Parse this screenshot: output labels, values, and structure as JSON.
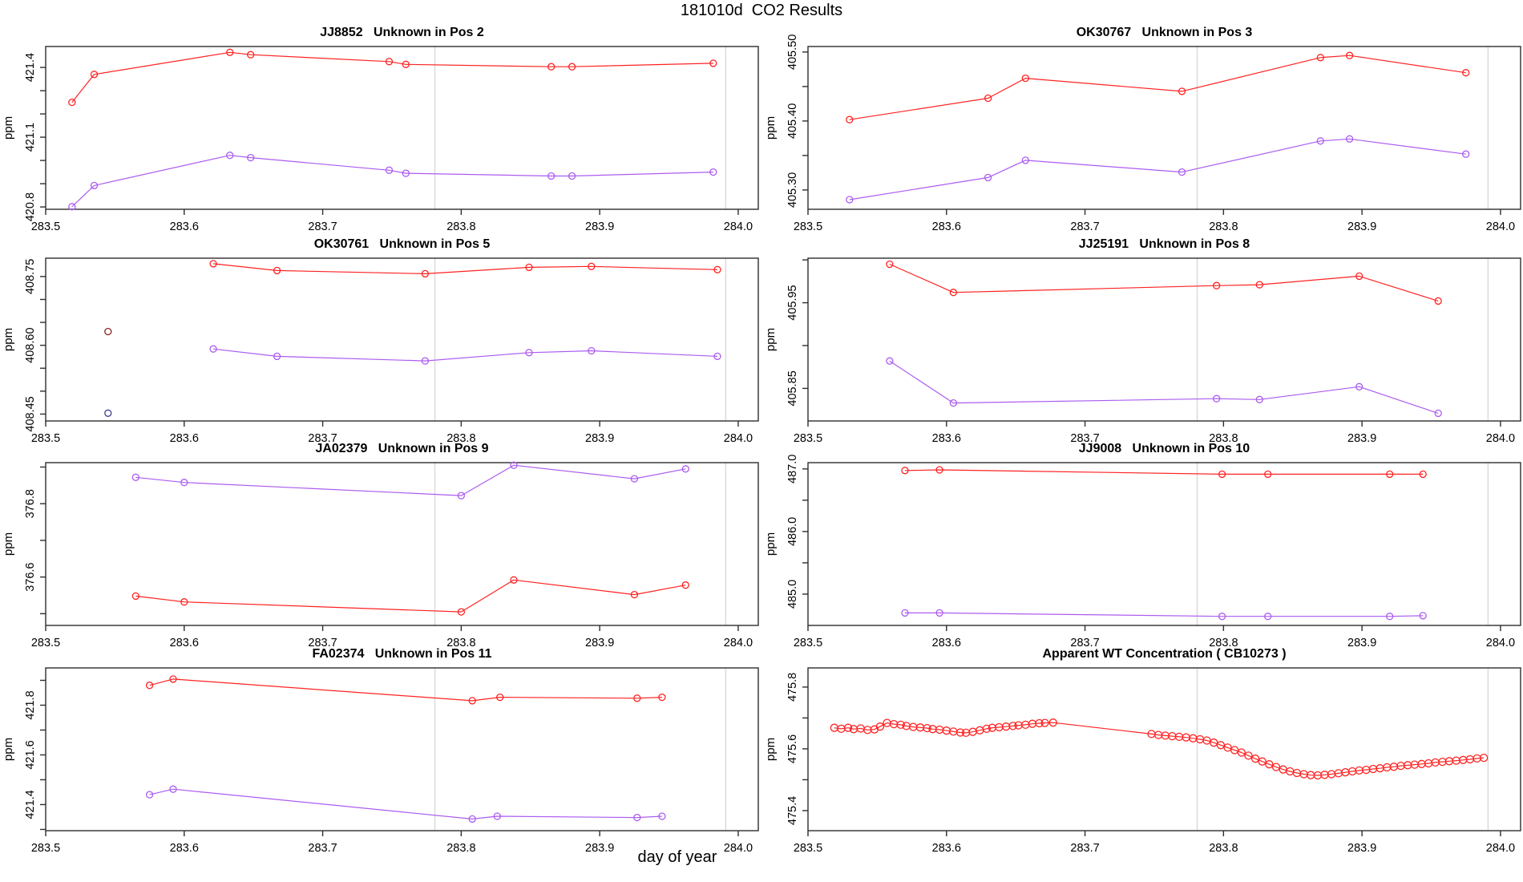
{
  "figure_title": "181010d  CO2 Results",
  "xlabel": "day of year",
  "palette": {
    "red": "#FF2222",
    "purple": "#AC5CF0",
    "dark_red": "#8B2323",
    "dark_purple": "#3F3C8E",
    "gridline": "#D8D8D8",
    "axis": "#2E2E2E"
  },
  "x_axis": {
    "lim": [
      283.5,
      284.0145
    ],
    "ticks": [
      283.5,
      283.6,
      283.7,
      283.8,
      283.9,
      284.0
    ],
    "tick_labels": [
      "283.5",
      "283.6",
      "283.7",
      "283.8",
      "283.9",
      "284.0"
    ],
    "vlines": [
      283.781,
      283.991
    ]
  },
  "chart_data": [
    {
      "type": "line",
      "title": "JJ8852   Unknown in Pos 2",
      "ylabel": "ppm",
      "ylim": [
        420.79,
        421.49
      ],
      "y_ticks": [
        420.8,
        420.9,
        421.0,
        421.1,
        421.2,
        421.3,
        421.4
      ],
      "y_tick_labels": [
        "420.8",
        "",
        "",
        "421.1",
        "",
        "",
        "421.4"
      ],
      "series": [
        {
          "name": "red-series",
          "color": "#FF2222",
          "line": true,
          "marker_r": 4,
          "points": [
            [
              283.519,
              421.25
            ],
            [
              283.535,
              421.37
            ],
            [
              283.633,
              421.465
            ],
            [
              283.648,
              421.455
            ],
            [
              283.748,
              421.425
            ],
            [
              283.76,
              421.413
            ],
            [
              283.865,
              421.403
            ],
            [
              283.88,
              421.403
            ],
            [
              283.982,
              421.418
            ]
          ]
        },
        {
          "name": "purple-series",
          "color": "#AC5CF0",
          "line": true,
          "marker_r": 4,
          "points": [
            [
              283.519,
              420.801
            ],
            [
              283.535,
              420.892
            ],
            [
              283.633,
              421.022
            ],
            [
              283.648,
              421.012
            ],
            [
              283.748,
              420.958
            ],
            [
              283.76,
              420.945
            ],
            [
              283.865,
              420.933
            ],
            [
              283.88,
              420.933
            ],
            [
              283.982,
              420.95
            ]
          ]
        }
      ]
    },
    {
      "type": "line",
      "title": "OK30767   Unknown in Pos 3",
      "ylabel": "ppm",
      "ylim": [
        405.272,
        405.508
      ],
      "y_ticks": [
        405.3,
        405.35,
        405.4,
        405.45,
        405.5
      ],
      "y_tick_labels": [
        "405.30",
        "",
        "405.40",
        "",
        "405.50"
      ],
      "series": [
        {
          "name": "red-series",
          "color": "#FF2222",
          "line": true,
          "marker_r": 4,
          "points": [
            [
              283.53,
              405.402
            ],
            [
              283.63,
              405.433
            ],
            [
              283.657,
              405.462
            ],
            [
              283.77,
              405.443
            ],
            [
              283.87,
              405.492
            ],
            [
              283.891,
              405.495
            ],
            [
              283.975,
              405.47
            ]
          ]
        },
        {
          "name": "purple-series",
          "color": "#AC5CF0",
          "line": true,
          "marker_r": 4,
          "points": [
            [
              283.53,
              405.286
            ],
            [
              283.63,
              405.318
            ],
            [
              283.657,
              405.343
            ],
            [
              283.77,
              405.326
            ],
            [
              283.87,
              405.371
            ],
            [
              283.891,
              405.374
            ],
            [
              283.975,
              405.352
            ]
          ]
        }
      ]
    },
    {
      "type": "line",
      "title": "OK30761   Unknown in Pos 5",
      "ylabel": "ppm",
      "ylim": [
        408.435,
        408.79
      ],
      "y_ticks": [
        408.45,
        408.5,
        408.55,
        408.6,
        408.65,
        408.7,
        408.75
      ],
      "y_tick_labels": [
        "408.45",
        "",
        "",
        "408.60",
        "",
        "",
        "408.75"
      ],
      "series": [
        {
          "name": "red-series",
          "color": "#FF2222",
          "line": true,
          "marker_r": 4,
          "points": [
            [
              283.621,
              408.778
            ],
            [
              283.667,
              408.763
            ],
            [
              283.774,
              408.756
            ],
            [
              283.849,
              408.77
            ],
            [
              283.894,
              408.772
            ],
            [
              283.985,
              408.765
            ]
          ]
        },
        {
          "name": "purple-series",
          "color": "#AC5CF0",
          "line": true,
          "marker_r": 4,
          "points": [
            [
              283.621,
              408.592
            ],
            [
              283.667,
              408.576
            ],
            [
              283.774,
              408.566
            ],
            [
              283.849,
              408.584
            ],
            [
              283.894,
              408.588
            ],
            [
              283.985,
              408.576
            ]
          ]
        },
        {
          "name": "dark-red-point",
          "color": "#8B2323",
          "line": false,
          "marker_r": 4,
          "points": [
            [
              283.545,
              408.63
            ]
          ]
        },
        {
          "name": "dark-purple-point",
          "color": "#3F3C8E",
          "line": false,
          "marker_r": 4,
          "points": [
            [
              283.545,
              408.452
            ]
          ]
        }
      ]
    },
    {
      "type": "line",
      "title": "JJ25191   Unknown in Pos 8",
      "ylabel": "ppm",
      "ylim": [
        405.812,
        406.002
      ],
      "y_ticks": [
        405.85,
        405.9,
        405.95,
        406.0
      ],
      "y_tick_labels": [
        "405.85",
        "",
        "405.95",
        ""
      ],
      "series": [
        {
          "name": "red-series",
          "color": "#FF2222",
          "line": true,
          "marker_r": 4,
          "points": [
            [
              283.559,
              405.995
            ],
            [
              283.605,
              405.962
            ],
            [
              283.795,
              405.97
            ],
            [
              283.826,
              405.971
            ],
            [
              283.898,
              405.981
            ],
            [
              283.955,
              405.952
            ]
          ]
        },
        {
          "name": "purple-series",
          "color": "#AC5CF0",
          "line": true,
          "marker_r": 4,
          "points": [
            [
              283.559,
              405.882
            ],
            [
              283.605,
              405.833
            ],
            [
              283.795,
              405.838
            ],
            [
              283.826,
              405.837
            ],
            [
              283.898,
              405.852
            ],
            [
              283.955,
              405.821
            ]
          ]
        }
      ]
    },
    {
      "type": "line",
      "title": "JA02379   Unknown in Pos 9",
      "ylabel": "ppm",
      "ylim": [
        376.468,
        376.912
      ],
      "y_ticks": [
        376.5,
        376.6,
        376.7,
        376.8,
        376.9
      ],
      "y_tick_labels": [
        "",
        "376.6",
        "",
        "376.8",
        ""
      ],
      "series": [
        {
          "name": "purple-series",
          "color": "#AC5CF0",
          "line": true,
          "marker_r": 4,
          "points": [
            [
              283.565,
              376.872
            ],
            [
              283.6,
              376.858
            ],
            [
              283.8,
              376.822
            ],
            [
              283.838,
              376.905
            ],
            [
              283.925,
              376.868
            ],
            [
              283.962,
              376.895
            ]
          ]
        },
        {
          "name": "red-series",
          "color": "#FF2222",
          "line": true,
          "marker_r": 4,
          "points": [
            [
              283.565,
              376.548
            ],
            [
              283.6,
              376.532
            ],
            [
              283.8,
              376.505
            ],
            [
              283.838,
              376.592
            ],
            [
              283.925,
              376.552
            ],
            [
              283.962,
              376.578
            ]
          ]
        }
      ]
    },
    {
      "type": "line",
      "title": "JJ9008   Unknown in Pos 10",
      "ylabel": "ppm",
      "ylim": [
        484.5,
        487.1
      ],
      "y_ticks": [
        485.0,
        485.5,
        486.0,
        486.5,
        487.0
      ],
      "y_tick_labels": [
        "485.0",
        "",
        "486.0",
        "",
        "487.0"
      ],
      "series": [
        {
          "name": "red-series",
          "color": "#FF2222",
          "line": true,
          "marker_r": 4,
          "points": [
            [
              283.57,
              486.975
            ],
            [
              283.595,
              486.985
            ],
            [
              283.799,
              486.915
            ],
            [
              283.832,
              486.915
            ],
            [
              283.92,
              486.915
            ],
            [
              283.944,
              486.915
            ]
          ]
        },
        {
          "name": "purple-series",
          "color": "#AC5CF0",
          "line": true,
          "marker_r": 4,
          "points": [
            [
              283.57,
              484.7
            ],
            [
              283.595,
              484.7
            ],
            [
              283.799,
              484.645
            ],
            [
              283.832,
              484.645
            ],
            [
              283.92,
              484.645
            ],
            [
              283.944,
              484.655
            ]
          ]
        }
      ]
    },
    {
      "type": "line",
      "title": "FA02374   Unknown in Pos 11",
      "ylabel": "ppm",
      "ylim": [
        421.295,
        421.95
      ],
      "y_ticks": [
        421.3,
        421.4,
        421.5,
        421.6,
        421.7,
        421.8,
        421.9
      ],
      "y_tick_labels": [
        "",
        "421.4",
        "",
        "421.6",
        "",
        "421.8",
        ""
      ],
      "series": [
        {
          "name": "red-series",
          "color": "#FF2222",
          "line": true,
          "marker_r": 4,
          "points": [
            [
              283.575,
              421.88
            ],
            [
              283.592,
              421.905
            ],
            [
              283.808,
              421.818
            ],
            [
              283.828,
              421.832
            ],
            [
              283.927,
              421.828
            ],
            [
              283.945,
              421.832
            ]
          ]
        },
        {
          "name": "purple-series",
          "color": "#AC5CF0",
          "line": true,
          "marker_r": 4,
          "points": [
            [
              283.575,
              421.44
            ],
            [
              283.592,
              421.462
            ],
            [
              283.808,
              421.342
            ],
            [
              283.826,
              421.353
            ],
            [
              283.927,
              421.348
            ],
            [
              283.945,
              421.353
            ]
          ]
        }
      ]
    },
    {
      "type": "line",
      "title": "Apparent WT Concentration ( CB10273 )",
      "ylabel": "ppm",
      "ylim": [
        475.335,
        475.862
      ],
      "y_ticks": [
        475.4,
        475.5,
        475.6,
        475.7,
        475.8
      ],
      "y_tick_labels": [
        "475.4",
        "",
        "475.6",
        "",
        "475.8"
      ],
      "series": [
        {
          "name": "wt-concentration-red",
          "color": "#FF2222",
          "line": true,
          "marker_r": 4.5,
          "points": [
            [
              283.519,
              475.668
            ],
            [
              283.524,
              475.665
            ],
            [
              283.529,
              475.668
            ],
            [
              283.533,
              475.664
            ],
            [
              283.538,
              475.666
            ],
            [
              283.543,
              475.661
            ],
            [
              283.548,
              475.663
            ],
            [
              283.552,
              475.672
            ],
            [
              283.557,
              475.684
            ],
            [
              283.562,
              475.68
            ],
            [
              283.567,
              475.678
            ],
            [
              283.571,
              475.674
            ],
            [
              283.576,
              475.671
            ],
            [
              283.581,
              475.669
            ],
            [
              283.586,
              475.667
            ],
            [
              283.59,
              475.664
            ],
            [
              283.595,
              475.662
            ],
            [
              283.6,
              475.659
            ],
            [
              283.605,
              475.656
            ],
            [
              283.61,
              475.653
            ],
            [
              283.614,
              475.652
            ],
            [
              283.619,
              475.655
            ],
            [
              283.624,
              475.66
            ],
            [
              283.629,
              475.665
            ],
            [
              283.633,
              475.668
            ],
            [
              283.638,
              475.67
            ],
            [
              283.643,
              475.672
            ],
            [
              283.648,
              475.674
            ],
            [
              283.652,
              475.676
            ],
            [
              283.657,
              475.678
            ],
            [
              283.662,
              475.681
            ],
            [
              283.667,
              475.683
            ],
            [
              283.671,
              475.684
            ],
            [
              283.677,
              475.685
            ],
            [
              283.748,
              475.648
            ],
            [
              283.753,
              475.645
            ],
            [
              283.758,
              475.643
            ],
            [
              283.763,
              475.641
            ],
            [
              283.768,
              475.639
            ],
            [
              283.773,
              475.637
            ],
            [
              283.778,
              475.634
            ],
            [
              283.783,
              475.631
            ],
            [
              283.788,
              475.627
            ],
            [
              283.793,
              475.62
            ],
            [
              283.798,
              475.612
            ],
            [
              283.803,
              475.604
            ],
            [
              283.808,
              475.596
            ],
            [
              283.813,
              475.588
            ],
            [
              283.818,
              475.578
            ],
            [
              283.823,
              475.568
            ],
            [
              283.828,
              475.559
            ],
            [
              283.833,
              475.55
            ],
            [
              283.838,
              475.541
            ],
            [
              283.843,
              475.533
            ],
            [
              283.848,
              475.527
            ],
            [
              283.853,
              475.522
            ],
            [
              283.858,
              475.518
            ],
            [
              283.863,
              475.515
            ],
            [
              283.868,
              475.514
            ],
            [
              283.873,
              475.516
            ],
            [
              283.878,
              475.518
            ],
            [
              283.883,
              475.521
            ],
            [
              283.888,
              475.524
            ],
            [
              283.893,
              475.527
            ],
            [
              283.898,
              475.53
            ],
            [
              283.903,
              475.532
            ],
            [
              283.908,
              475.535
            ],
            [
              283.913,
              475.537
            ],
            [
              283.918,
              475.54
            ],
            [
              283.923,
              475.542
            ],
            [
              283.928,
              475.545
            ],
            [
              283.933,
              475.547
            ],
            [
              283.938,
              475.549
            ],
            [
              283.943,
              475.551
            ],
            [
              283.948,
              475.553
            ],
            [
              283.953,
              475.556
            ],
            [
              283.958,
              475.558
            ],
            [
              283.963,
              475.56
            ],
            [
              283.968,
              475.562
            ],
            [
              283.973,
              475.564
            ],
            [
              283.978,
              475.566
            ],
            [
              283.983,
              475.569
            ],
            [
              283.988,
              475.571
            ]
          ]
        }
      ]
    }
  ]
}
